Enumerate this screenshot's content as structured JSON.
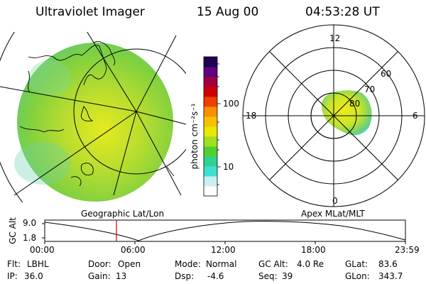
{
  "header": {
    "title": "Ultraviolet Imager",
    "date": "15 Aug 00",
    "time": "04:53:28 UT"
  },
  "colorbar": {
    "unit_label": "photon cm⁻²s⁻¹",
    "tick_labels": [
      "100",
      "10"
    ],
    "colors": [
      "#ffffff",
      "#c8f0f0",
      "#40e0d0",
      "#30d090",
      "#50d030",
      "#a0e020",
      "#e8e800",
      "#f8c000",
      "#f89000",
      "#f04000",
      "#d00000",
      "#a00040",
      "#600080",
      "#200050"
    ]
  },
  "geographic_panel": {
    "label": "Geographic Lat/Lon",
    "aurora_color": "#9ad63a"
  },
  "apex_panel": {
    "label": "Apex MLat/MLT",
    "mlt_labels": {
      "top": "12",
      "left": "18",
      "right": "6",
      "bottom": "0"
    },
    "lat_labels": [
      "80",
      "70",
      "60"
    ]
  },
  "timeline": {
    "ylabel": "GC Alt",
    "ytick_labels": [
      "9.0",
      "1.8"
    ],
    "xtick_labels": [
      "00:00",
      "06:00",
      "12:00",
      "18:00",
      "23:59"
    ],
    "current_marker_color": "#cc0000"
  },
  "info": {
    "row1": [
      {
        "label": "Flt:",
        "value": "LBHL"
      },
      {
        "label": "Door:",
        "value": "Open"
      },
      {
        "label": "Mode:",
        "value": "Normal"
      },
      {
        "label": "GC Alt:",
        "value": "4.0 Re"
      },
      {
        "label": "GLat:",
        "value": "83.6"
      }
    ],
    "row2": [
      {
        "label": "IP:",
        "value": "36.0"
      },
      {
        "label": "Gain:",
        "value": "13"
      },
      {
        "label": "Dsp:",
        "value": "-4.6"
      },
      {
        "label": "Seq:",
        "value": "39"
      },
      {
        "label": "GLon:",
        "value": "343.7"
      }
    ]
  }
}
